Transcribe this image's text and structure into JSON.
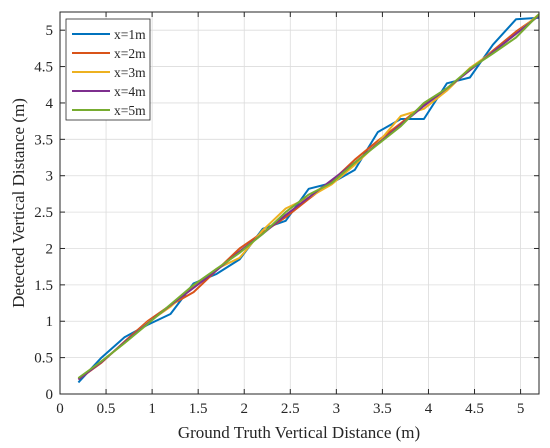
{
  "chart_data": {
    "type": "line",
    "xlabel": "Ground Truth Vertical Distance (m)",
    "ylabel": "Detected Vertical Distance (m)",
    "xlim": [
      0,
      5.2
    ],
    "ylim": [
      0,
      5.25
    ],
    "xticks": [
      0,
      0.5,
      1,
      1.5,
      2,
      2.5,
      3,
      3.5,
      4,
      4.5,
      5
    ],
    "yticks": [
      0,
      0.5,
      1,
      1.5,
      2,
      2.5,
      3,
      3.5,
      4,
      4.5,
      5
    ],
    "xtick_labels": [
      "0",
      "0.5",
      "1",
      "1.5",
      "2",
      "2.5",
      "3",
      "3.5",
      "4",
      "4.5",
      "5"
    ],
    "ytick_labels": [
      "0",
      "0.5",
      "1",
      "1.5",
      "2",
      "2.5",
      "3",
      "3.5",
      "4",
      "4.5",
      "5"
    ],
    "grid": true,
    "legend_position": "top-left",
    "series": [
      {
        "name": "x=1m",
        "color": "#0072BD",
        "x": [
          0.2,
          0.45,
          0.7,
          0.95,
          1.2,
          1.45,
          1.7,
          1.95,
          2.2,
          2.45,
          2.7,
          2.95,
          3.2,
          3.45,
          3.7,
          3.95,
          4.2,
          4.45,
          4.7,
          4.95,
          5.2
        ],
        "y": [
          0.16,
          0.5,
          0.78,
          0.95,
          1.1,
          1.52,
          1.65,
          1.85,
          2.27,
          2.38,
          2.82,
          2.9,
          3.08,
          3.6,
          3.78,
          3.78,
          4.27,
          4.35,
          4.8,
          5.15,
          5.17
        ]
      },
      {
        "name": "x=2m",
        "color": "#D95319",
        "x": [
          0.2,
          0.45,
          0.7,
          0.95,
          1.2,
          1.45,
          1.7,
          1.95,
          2.2,
          2.45,
          2.7,
          2.95,
          3.2,
          3.45,
          3.7,
          3.95,
          4.2,
          4.45,
          4.7,
          4.95,
          5.2
        ],
        "y": [
          0.2,
          0.43,
          0.72,
          1.0,
          1.22,
          1.4,
          1.7,
          2.0,
          2.22,
          2.43,
          2.68,
          2.92,
          3.22,
          3.48,
          3.72,
          3.98,
          4.2,
          4.45,
          4.72,
          4.98,
          5.2
        ]
      },
      {
        "name": "x=3m",
        "color": "#EDB120",
        "x": [
          0.2,
          0.45,
          0.7,
          0.95,
          1.2,
          1.45,
          1.7,
          1.95,
          2.2,
          2.45,
          2.7,
          2.95,
          3.2,
          3.45,
          3.7,
          3.95,
          4.2,
          4.45,
          4.7,
          4.95,
          5.2
        ],
        "y": [
          0.21,
          0.45,
          0.7,
          0.98,
          1.2,
          1.48,
          1.72,
          1.87,
          2.25,
          2.55,
          2.7,
          2.88,
          3.15,
          3.45,
          3.82,
          3.92,
          4.17,
          4.48,
          4.7,
          4.95,
          5.22
        ]
      },
      {
        "name": "x=4m",
        "color": "#7E2F8E",
        "x": [
          0.2,
          0.45,
          0.7,
          0.95,
          1.2,
          1.45,
          1.7,
          1.95,
          2.2,
          2.45,
          2.7,
          2.95,
          3.2,
          3.45,
          3.7,
          3.95,
          4.2,
          4.45,
          4.7,
          4.95,
          5.2
        ],
        "y": [
          0.2,
          0.44,
          0.71,
          0.97,
          1.22,
          1.46,
          1.7,
          1.96,
          2.2,
          2.46,
          2.7,
          2.94,
          3.18,
          3.44,
          3.7,
          3.96,
          4.2,
          4.45,
          4.7,
          4.95,
          5.2
        ]
      },
      {
        "name": "x=5m",
        "color": "#77AC30",
        "x": [
          0.2,
          0.45,
          0.7,
          0.95,
          1.2,
          1.45,
          1.7,
          1.95,
          2.2,
          2.45,
          2.7,
          2.95,
          3.2,
          3.45,
          3.7,
          3.95,
          4.2,
          4.45,
          4.7,
          4.95,
          5.2
        ],
        "y": [
          0.22,
          0.45,
          0.7,
          0.96,
          1.23,
          1.5,
          1.72,
          1.94,
          2.2,
          2.5,
          2.74,
          2.9,
          3.18,
          3.43,
          3.68,
          4.0,
          4.2,
          4.47,
          4.68,
          4.9,
          5.22
        ]
      }
    ]
  }
}
